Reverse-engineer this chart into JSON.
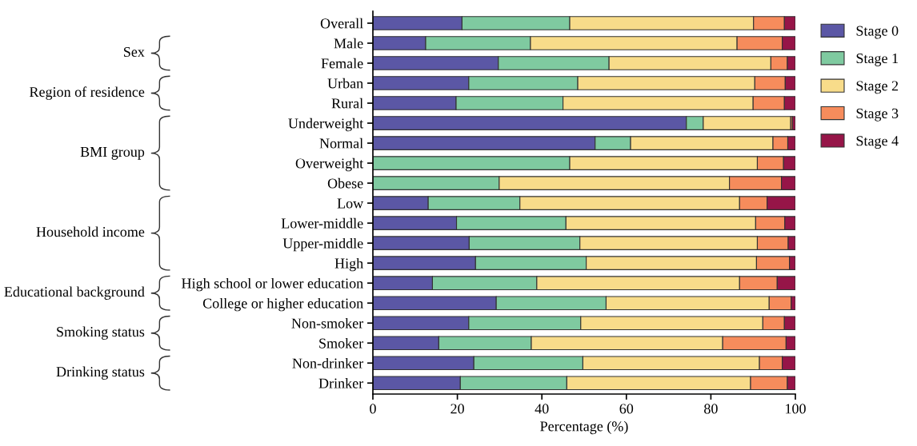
{
  "chart_data": {
    "type": "bar",
    "orientation": "horizontal",
    "stacked": true,
    "xlabel": "Percentage (%)",
    "categories": [
      "Overall",
      "Male",
      "Female",
      "Urban",
      "Rural",
      "Underweight",
      "Normal",
      "Overweight",
      "Obese",
      "Low",
      "Lower-middle",
      "Upper-middle",
      "High",
      "High school or lower education",
      "College or higher education",
      "Non-smoker",
      "Smoker",
      "Non-drinker",
      "Drinker"
    ],
    "series": [
      {
        "name": "Stage 0",
        "color": "#5b57a5",
        "values": [
          21.1,
          12.5,
          29.7,
          22.7,
          19.7,
          74.2,
          52.6,
          0,
          0,
          13.1,
          19.8,
          22.8,
          24.3,
          14.1,
          29.2,
          22.7,
          15.6,
          23.9,
          20.7
        ]
      },
      {
        "name": "Stage 1",
        "color": "#7fcaa0",
        "values": [
          25.5,
          24.8,
          26.2,
          25.8,
          25.3,
          4.0,
          8.4,
          46.6,
          29.9,
          21.7,
          25.9,
          26.2,
          26.2,
          24.7,
          26.0,
          26.5,
          21.9,
          25.8,
          25.2
        ]
      },
      {
        "name": "Stage 2",
        "color": "#f8dc8a",
        "values": [
          43.5,
          48.9,
          38.3,
          41.9,
          45.0,
          20.7,
          33.7,
          44.4,
          54.5,
          52.0,
          44.9,
          42.0,
          40.3,
          48.0,
          38.6,
          43.1,
          45.3,
          41.8,
          43.5
        ]
      },
      {
        "name": "Stage 3",
        "color": "#f68c5c",
        "values": [
          7.3,
          10.7,
          3.9,
          7.2,
          7.4,
          0.4,
          3.5,
          6.2,
          12.3,
          6.5,
          6.9,
          7.3,
          7.8,
          8.9,
          5.2,
          5.1,
          15.0,
          5.4,
          8.7
        ]
      },
      {
        "name": "Stage 4",
        "color": "#961548",
        "values": [
          2.6,
          3.1,
          1.9,
          2.4,
          2.6,
          0.7,
          1.8,
          2.8,
          3.3,
          6.7,
          2.5,
          1.7,
          1.4,
          4.3,
          1.0,
          2.6,
          2.2,
          3.1,
          1.9
        ]
      }
    ],
    "xlim": [
      0,
      100
    ],
    "xticks": [
      0,
      20,
      40,
      60,
      80,
      100
    ],
    "grid": false,
    "legend": "top right",
    "annotations": [
      "Sex",
      "Region of residence",
      "BMI group",
      "Household income",
      "Educational background",
      "Smoking status",
      "Drinking status"
    ]
  }
}
